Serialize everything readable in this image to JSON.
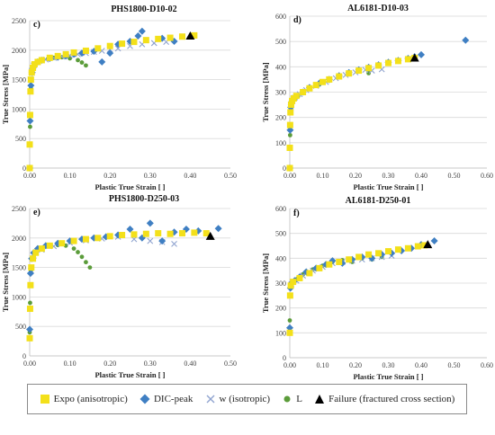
{
  "colors": {
    "expo": "#f3e01a",
    "dic": "#3f7fc3",
    "w": "#8fa3cf",
    "L": "#5b9c3a",
    "failure": "#000000"
  },
  "legend": {
    "items": [
      {
        "key": "expo",
        "label": "Expo (anisotropic)",
        "marker": "square"
      },
      {
        "key": "dic",
        "label": "DIC-peak",
        "marker": "diamond"
      },
      {
        "key": "w",
        "label": "w (isotropic)",
        "marker": "cross"
      },
      {
        "key": "L",
        "label": "L",
        "marker": "circle"
      },
      {
        "key": "failure",
        "label": "Failure (fractured cross section)",
        "marker": "triangle"
      }
    ]
  },
  "chart_data": [
    {
      "type": "scatter",
      "panel": "c)",
      "title": "PHS1800-D10-02",
      "xlabel": "Plastic True Strain [ ]",
      "ylabel": "True Stress [MPa]",
      "xlim": [
        0,
        0.5
      ],
      "ylim": [
        0,
        2500
      ],
      "xticks": [
        "0.00",
        "0.10",
        "0.20",
        "0.30",
        "0.40",
        "0.50"
      ],
      "yticks": [
        "0",
        "500",
        "1000",
        "1500",
        "2000",
        "2500"
      ],
      "series": [
        {
          "key": "expo",
          "x": [
            0.0,
            0.0,
            0.001,
            0.002,
            0.003,
            0.005,
            0.008,
            0.012,
            0.02,
            0.03,
            0.05,
            0.07,
            0.09,
            0.11,
            0.14,
            0.17,
            0.2,
            0.23,
            0.26,
            0.29,
            0.32,
            0.35,
            0.38,
            0.41
          ],
          "y": [
            0,
            400,
            900,
            1300,
            1500,
            1620,
            1700,
            1760,
            1800,
            1830,
            1870,
            1900,
            1930,
            1960,
            1990,
            2030,
            2070,
            2110,
            2140,
            2170,
            2190,
            2210,
            2230,
            2250
          ]
        },
        {
          "key": "dic",
          "x": [
            0.0,
            0.001,
            0.003,
            0.006,
            0.01,
            0.02,
            0.03,
            0.05,
            0.07,
            0.09,
            0.11,
            0.13,
            0.16,
            0.18,
            0.2,
            0.22,
            0.25,
            0.27,
            0.28,
            0.33,
            0.36
          ],
          "y": [
            0,
            800,
            1400,
            1620,
            1720,
            1800,
            1830,
            1860,
            1880,
            1900,
            1930,
            1950,
            1980,
            1800,
            1950,
            2100,
            2150,
            2240,
            2320,
            2200,
            2150
          ]
        },
        {
          "key": "w",
          "x": [
            0.002,
            0.005,
            0.01,
            0.02,
            0.04,
            0.06,
            0.08,
            0.1,
            0.12,
            0.14,
            0.16,
            0.18,
            0.2,
            0.22,
            0.25,
            0.28,
            0.31,
            0.34
          ],
          "y": [
            1500,
            1650,
            1740,
            1800,
            1840,
            1870,
            1890,
            1910,
            1930,
            1950,
            1970,
            1990,
            2010,
            2030,
            2070,
            2100,
            2120,
            2140
          ]
        },
        {
          "key": "L",
          "x": [
            0.0,
            0.001,
            0.003,
            0.006,
            0.01,
            0.02,
            0.03,
            0.045,
            0.06,
            0.08,
            0.1,
            0.12,
            0.13,
            0.14
          ],
          "y": [
            0,
            700,
            1350,
            1600,
            1700,
            1780,
            1820,
            1850,
            1870,
            1880,
            1860,
            1830,
            1790,
            1740
          ]
        }
      ],
      "failure": {
        "x": 0.4,
        "y": 2240
      }
    },
    {
      "type": "scatter",
      "panel": "d)",
      "title": "AL6181-D10-03",
      "xlabel": "Plastic True Strain [ ]",
      "ylabel": "True Stress [MPa]",
      "xlim": [
        0,
        0.6
      ],
      "ylim": [
        0,
        600
      ],
      "xticks": [
        "0.00",
        "0.10",
        "0.20",
        "0.30",
        "0.40",
        "0.50",
        "0.60"
      ],
      "yticks": [
        "0",
        "100",
        "200",
        "300",
        "400",
        "500",
        "600"
      ],
      "series": [
        {
          "key": "expo",
          "x": [
            0.0,
            0.0,
            0.001,
            0.002,
            0.004,
            0.007,
            0.012,
            0.02,
            0.04,
            0.06,
            0.08,
            0.1,
            0.12,
            0.15,
            0.18,
            0.21,
            0.24,
            0.27,
            0.3,
            0.33,
            0.36,
            0.38
          ],
          "y": [
            0,
            80,
            170,
            220,
            250,
            265,
            275,
            285,
            300,
            315,
            328,
            340,
            350,
            362,
            374,
            385,
            395,
            405,
            415,
            423,
            430,
            435
          ]
        },
        {
          "key": "dic",
          "x": [
            0.0,
            0.001,
            0.003,
            0.006,
            0.01,
            0.02,
            0.04,
            0.06,
            0.09,
            0.12,
            0.15,
            0.18,
            0.21,
            0.24,
            0.27,
            0.3,
            0.33,
            0.36,
            0.38,
            0.4,
            0.535
          ],
          "y": [
            0,
            150,
            240,
            262,
            272,
            282,
            300,
            318,
            335,
            350,
            365,
            377,
            388,
            398,
            408,
            418,
            425,
            433,
            440,
            448,
            505
          ]
        },
        {
          "key": "w",
          "x": [
            0.003,
            0.008,
            0.015,
            0.03,
            0.05,
            0.08,
            0.11,
            0.14,
            0.17,
            0.2,
            0.23,
            0.25,
            0.28
          ],
          "y": [
            240,
            265,
            278,
            292,
            308,
            325,
            340,
            355,
            368,
            378,
            388,
            385,
            390
          ]
        },
        {
          "key": "L",
          "x": [
            0.0,
            0.001,
            0.003,
            0.006,
            0.012,
            0.025,
            0.04,
            0.06,
            0.09,
            0.12,
            0.15,
            0.18,
            0.21,
            0.24
          ],
          "y": [
            0,
            130,
            230,
            258,
            270,
            283,
            298,
            313,
            330,
            345,
            360,
            372,
            382,
            375
          ]
        }
      ],
      "failure": {
        "x": 0.38,
        "y": 435
      }
    },
    {
      "type": "scatter",
      "panel": "e)",
      "title": "PHS1800-D250-03",
      "xlabel": "Plastic True Strain [ ]",
      "ylabel": "True Stress [MPa]",
      "xlim": [
        0,
        0.5
      ],
      "ylim": [
        0,
        2500
      ],
      "xticks": [
        "0.00",
        "0.10",
        "0.20",
        "0.30",
        "0.40",
        "0.50"
      ],
      "yticks": [
        "0",
        "500",
        "1000",
        "1500",
        "2000",
        "2500"
      ],
      "series": [
        {
          "key": "expo",
          "x": [
            0.0,
            0.001,
            0.002,
            0.004,
            0.008,
            0.015,
            0.03,
            0.05,
            0.08,
            0.11,
            0.14,
            0.17,
            0.2,
            0.23,
            0.26,
            0.29,
            0.32,
            0.35,
            0.38,
            0.41,
            0.44
          ],
          "y": [
            300,
            800,
            1200,
            1500,
            1650,
            1750,
            1820,
            1870,
            1910,
            1950,
            1980,
            2000,
            2030,
            2050,
            2060,
            2070,
            2080,
            2070,
            2080,
            2090,
            2080
          ]
        },
        {
          "key": "dic",
          "x": [
            0.0,
            0.002,
            0.005,
            0.01,
            0.02,
            0.04,
            0.07,
            0.1,
            0.13,
            0.16,
            0.19,
            0.22,
            0.25,
            0.28,
            0.3,
            0.33,
            0.36,
            0.39,
            0.42,
            0.47
          ],
          "y": [
            450,
            1400,
            1650,
            1750,
            1820,
            1870,
            1910,
            1950,
            1980,
            2000,
            2020,
            2050,
            2150,
            2000,
            2250,
            1950,
            2100,
            2150,
            2120,
            2160
          ]
        },
        {
          "key": "w",
          "x": [
            0.003,
            0.01,
            0.03,
            0.06,
            0.1,
            0.14,
            0.18,
            0.22,
            0.26,
            0.3,
            0.33,
            0.36
          ],
          "y": [
            1450,
            1700,
            1800,
            1860,
            1920,
            1960,
            1990,
            2020,
            1980,
            1950,
            1930,
            1900
          ]
        },
        {
          "key": "L",
          "x": [
            0.0,
            0.001,
            0.003,
            0.007,
            0.015,
            0.03,
            0.05,
            0.07,
            0.09,
            0.11,
            0.12,
            0.13,
            0.14,
            0.15
          ],
          "y": [
            400,
            900,
            1450,
            1650,
            1770,
            1830,
            1860,
            1880,
            1870,
            1820,
            1760,
            1680,
            1590,
            1500
          ]
        }
      ],
      "failure": {
        "x": 0.45,
        "y": 2030
      }
    },
    {
      "type": "scatter",
      "panel": "f)",
      "title": "AL6181-D250-01",
      "xlabel": "Plastic True Strain [ ]",
      "ylabel": "True Stress [MPa]",
      "xlim": [
        0,
        0.6
      ],
      "ylim": [
        0,
        600
      ],
      "xticks": [
        "0.00",
        "0.10",
        "0.20",
        "0.30",
        "0.40",
        "0.50",
        "0.60"
      ],
      "yticks": [
        "0",
        "100",
        "200",
        "300",
        "400",
        "500",
        "600"
      ],
      "series": [
        {
          "key": "expo",
          "x": [
            0.0,
            0.001,
            0.003,
            0.01,
            0.03,
            0.06,
            0.09,
            0.12,
            0.15,
            0.18,
            0.21,
            0.24,
            0.27,
            0.3,
            0.33,
            0.36,
            0.39,
            0.41
          ],
          "y": [
            100,
            250,
            290,
            305,
            320,
            340,
            360,
            375,
            385,
            395,
            405,
            415,
            420,
            428,
            435,
            440,
            448,
            452
          ]
        },
        {
          "key": "dic",
          "x": [
            0.0,
            0.002,
            0.006,
            0.015,
            0.03,
            0.05,
            0.08,
            0.11,
            0.13,
            0.16,
            0.19,
            0.22,
            0.25,
            0.28,
            0.31,
            0.34,
            0.37,
            0.4,
            0.44
          ],
          "y": [
            120,
            280,
            300,
            310,
            325,
            345,
            360,
            375,
            390,
            380,
            395,
            405,
            400,
            415,
            420,
            430,
            440,
            455,
            470
          ]
        },
        {
          "key": "w",
          "x": [
            0.005,
            0.02,
            0.04,
            0.07,
            0.1,
            0.13,
            0.16,
            0.19,
            0.22,
            0.25,
            0.28,
            0.31
          ],
          "y": [
            295,
            310,
            330,
            350,
            365,
            380,
            385,
            390,
            395,
            400,
            405,
            410
          ]
        },
        {
          "key": "L",
          "x": [
            0.0,
            0.002,
            0.008,
            0.02,
            0.04,
            0.07,
            0.1,
            0.13,
            0.16,
            0.19,
            0.22,
            0.25,
            0.28
          ],
          "y": [
            150,
            285,
            300,
            315,
            335,
            355,
            370,
            385,
            392,
            385,
            400,
            395,
            405
          ]
        }
      ],
      "failure": {
        "x": 0.42,
        "y": 455
      }
    }
  ]
}
